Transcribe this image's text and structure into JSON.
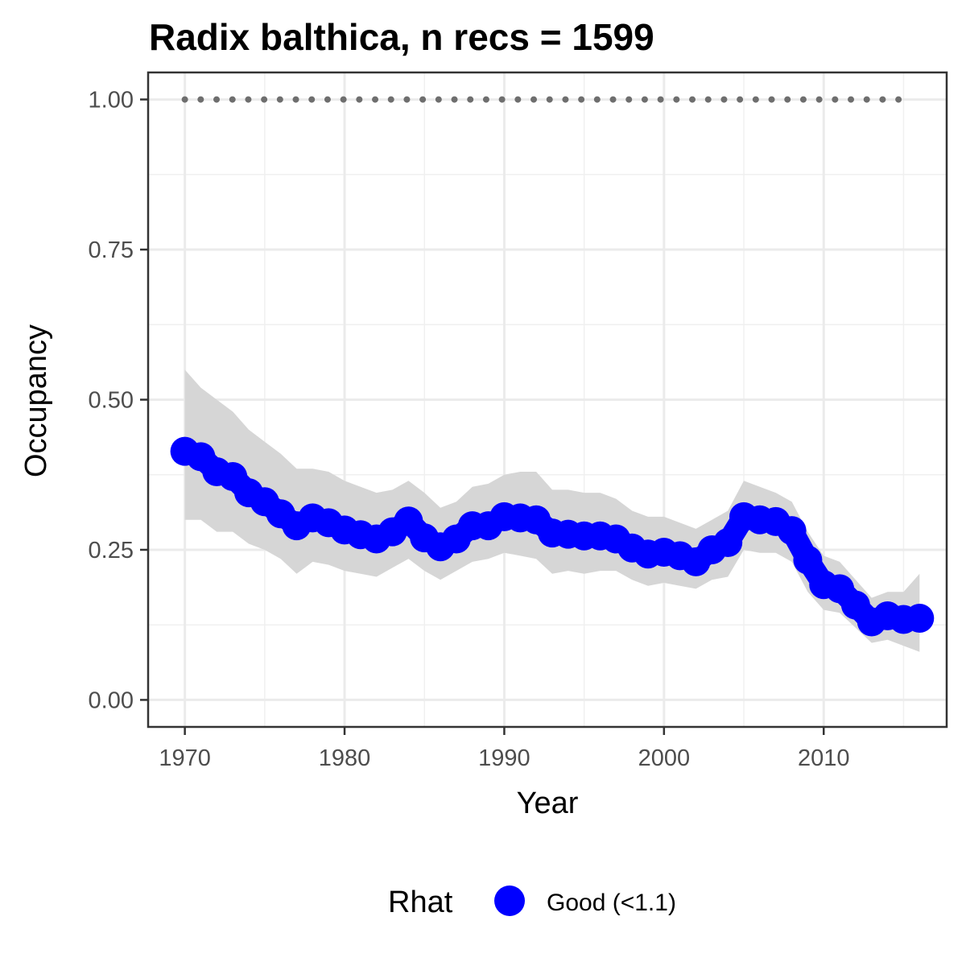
{
  "chart_data": {
    "type": "line",
    "title": "Radix balthica, n recs = 1599",
    "xlabel": "Year",
    "ylabel": "Occupancy",
    "xlim": [
      1967.7,
      2017.7
    ],
    "ylim": [
      -0.045,
      1.045
    ],
    "x_ticks": [
      1970,
      1980,
      1990,
      2000,
      2010
    ],
    "x_tick_labels": [
      "1970",
      "1980",
      "1990",
      "2000",
      "2010"
    ],
    "y_ticks": [
      0.0,
      0.25,
      0.5,
      0.75,
      1.0
    ],
    "y_tick_labels": [
      "0.00",
      "0.25",
      "0.50",
      "0.75",
      "1.00"
    ],
    "grid": true,
    "background": "#ffffff",
    "series": [
      {
        "name": "Good (<1.1)",
        "color": "#0000ff",
        "x": [
          1970,
          1971,
          1972,
          1973,
          1974,
          1975,
          1976,
          1977,
          1978,
          1979,
          1980,
          1981,
          1982,
          1983,
          1984,
          1985,
          1986,
          1987,
          1988,
          1989,
          1990,
          1991,
          1992,
          1993,
          1994,
          1995,
          1996,
          1997,
          1998,
          1999,
          2000,
          2001,
          2002,
          2003,
          2004,
          2005,
          2006,
          2007,
          2008,
          2009,
          2010,
          2011,
          2012,
          2013,
          2014,
          2015,
          2016
        ],
        "y": [
          0.414,
          0.405,
          0.38,
          0.372,
          0.345,
          0.33,
          0.31,
          0.29,
          0.303,
          0.295,
          0.283,
          0.275,
          0.268,
          0.28,
          0.298,
          0.27,
          0.255,
          0.268,
          0.29,
          0.29,
          0.305,
          0.303,
          0.3,
          0.278,
          0.276,
          0.273,
          0.273,
          0.268,
          0.253,
          0.243,
          0.246,
          0.24,
          0.23,
          0.25,
          0.262,
          0.305,
          0.3,
          0.297,
          0.282,
          0.233,
          0.192,
          0.185,
          0.158,
          0.13,
          0.14,
          0.134,
          0.136
        ],
        "lower": [
          0.3,
          0.3,
          0.28,
          0.28,
          0.26,
          0.25,
          0.235,
          0.21,
          0.23,
          0.225,
          0.215,
          0.21,
          0.205,
          0.22,
          0.235,
          0.215,
          0.2,
          0.215,
          0.23,
          0.235,
          0.245,
          0.24,
          0.235,
          0.21,
          0.215,
          0.21,
          0.215,
          0.215,
          0.2,
          0.19,
          0.195,
          0.19,
          0.185,
          0.2,
          0.205,
          0.25,
          0.245,
          0.245,
          0.23,
          0.18,
          0.15,
          0.145,
          0.12,
          0.095,
          0.1,
          0.09,
          0.08
        ],
        "upper": [
          0.55,
          0.52,
          0.5,
          0.48,
          0.45,
          0.43,
          0.41,
          0.385,
          0.385,
          0.38,
          0.365,
          0.355,
          0.345,
          0.35,
          0.365,
          0.345,
          0.32,
          0.33,
          0.355,
          0.36,
          0.375,
          0.38,
          0.38,
          0.35,
          0.35,
          0.345,
          0.345,
          0.335,
          0.315,
          0.305,
          0.305,
          0.295,
          0.285,
          0.3,
          0.315,
          0.365,
          0.355,
          0.345,
          0.33,
          0.28,
          0.24,
          0.23,
          0.2,
          0.17,
          0.18,
          0.18,
          0.21
        ]
      }
    ],
    "reference_line": {
      "y": 1.0,
      "x_start": 1970,
      "x_end": 2015,
      "color": "#6e6e6e",
      "style": "dotted"
    },
    "band_color": "#d6d6d6",
    "legend": {
      "title": "Rhat",
      "position": "bottom",
      "entries": [
        {
          "label": "Good (<1.1)",
          "color": "#0000ff"
        }
      ]
    }
  }
}
